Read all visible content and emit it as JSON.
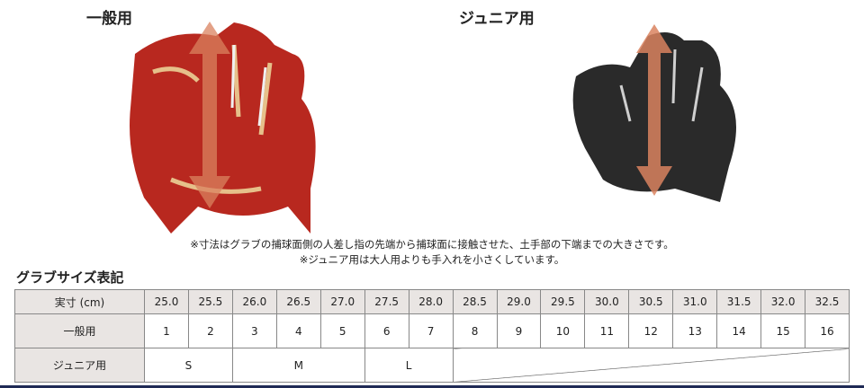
{
  "headings": {
    "adult": "一般用",
    "junior": "ジュニア用",
    "size_table": "グラブサイズ表記"
  },
  "notes": [
    "※寸法はグラブの捕球面側の人差し指の先端から捕球面に接触させた、土手部の下端までの大きさです。",
    "※ジュニア用は大人用よりも手入れを小さくしています。"
  ],
  "colors": {
    "adult_glove": "#b8281f",
    "junior_glove": "#2a2a2a",
    "arrow": "#d9825f",
    "footer_line": "#1f2a55"
  },
  "table": {
    "row_labels": [
      "実寸 (cm)",
      "一般用",
      "ジュニア用"
    ],
    "sizes_cm": [
      "25.0",
      "25.5",
      "26.0",
      "26.5",
      "27.0",
      "27.5",
      "28.0",
      "28.5",
      "29.0",
      "29.5",
      "30.0",
      "30.5",
      "31.0",
      "31.5",
      "32.0",
      "32.5"
    ],
    "adult": [
      "1",
      "2",
      "3",
      "4",
      "5",
      "6",
      "7",
      "8",
      "9",
      "10",
      "11",
      "12",
      "13",
      "14",
      "15",
      "16"
    ],
    "junior": [
      {
        "label": "S",
        "span": 2
      },
      {
        "label": "M",
        "span": 3
      },
      {
        "label": "L",
        "span": 2
      }
    ]
  }
}
